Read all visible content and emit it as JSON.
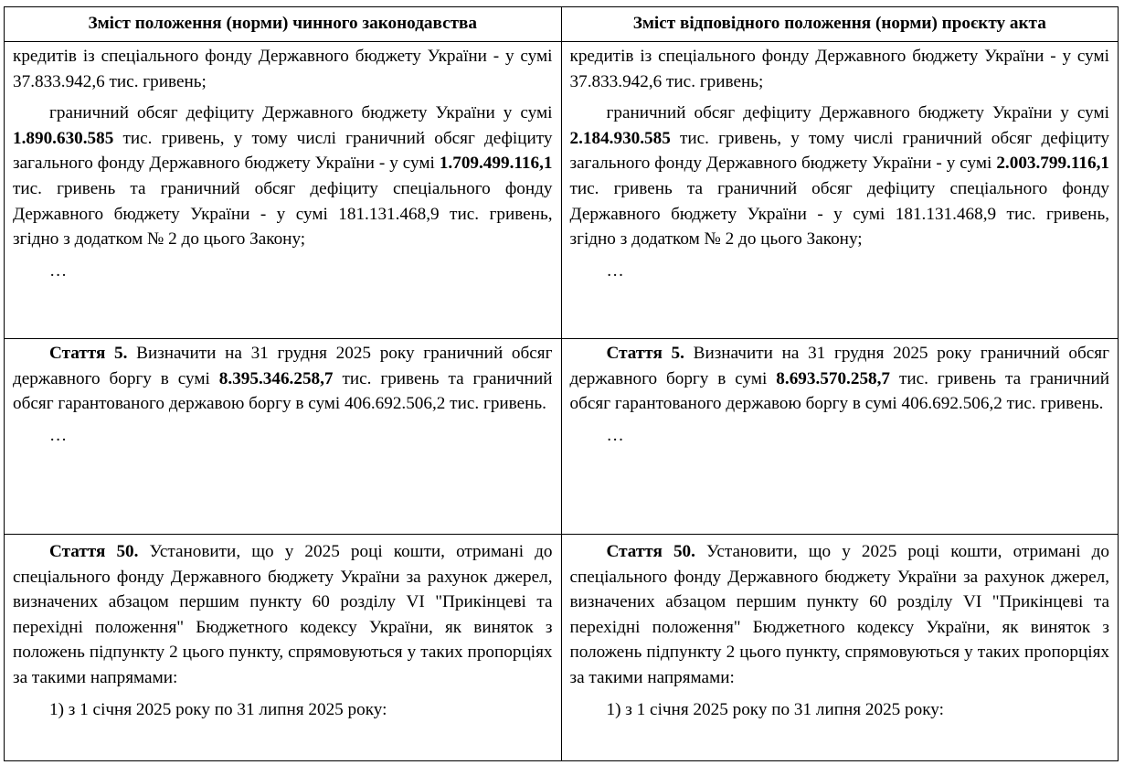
{
  "headers": [
    "Зміст положення (норми) чинного законодавства",
    "Зміст відповідного положення (норми) проєкту акта"
  ],
  "rows": [
    [
      [
        {
          "indent": false,
          "segments": [
            {
              "text": "кредитів із спеціального фонду Державного бюджету України - у сумі 37.833.942,6 тис. гривень;",
              "bold": false
            }
          ]
        },
        {
          "indent": true,
          "segments": [
            {
              "text": "граничний обсяг дефіциту Державного бюджету України у сумі ",
              "bold": false
            },
            {
              "text": "1.890.630.585",
              "bold": true
            },
            {
              "text": " тис. гривень, у тому числі граничний обсяг дефіциту загального фонду Державного бюджету України - у сумі ",
              "bold": false
            },
            {
              "text": "1.709.499.116,1",
              "bold": true
            },
            {
              "text": " тис. гривень та граничний обсяг дефіциту спеціального фонду Державного бюджету України - у сумі 181.131.468,9 тис. гривень, згідно з додатком № 2 до цього Закону;",
              "bold": false
            }
          ]
        },
        {
          "indent": true,
          "segments": [
            {
              "text": "…",
              "bold": false
            }
          ]
        }
      ],
      [
        {
          "indent": false,
          "segments": [
            {
              "text": "кредитів із спеціального фонду Державного бюджету України - у сумі 37.833.942,6 тис. гривень;",
              "bold": false
            }
          ]
        },
        {
          "indent": true,
          "segments": [
            {
              "text": "граничний обсяг дефіциту Державного бюджету України у сумі ",
              "bold": false
            },
            {
              "text": "2.184.930.585",
              "bold": true
            },
            {
              "text": " тис. гривень, у тому числі граничний обсяг дефіциту загального фонду Державного бюджету України - у сумі ",
              "bold": false
            },
            {
              "text": "2.003.799.116,1",
              "bold": true
            },
            {
              "text": " тис. гривень та граничний обсяг дефіциту спеціального фонду Державного бюджету України - у сумі 181.131.468,9 тис. гривень, згідно з додатком № 2 до цього Закону;",
              "bold": false
            }
          ]
        },
        {
          "indent": true,
          "segments": [
            {
              "text": "…",
              "bold": false
            }
          ]
        }
      ]
    ],
    [
      [
        {
          "indent": true,
          "segments": [
            {
              "text": "Стаття 5.",
              "bold": true
            },
            {
              "text": " Визначити на 31 грудня 2025 року граничний обсяг державного боргу в сумі ",
              "bold": false
            },
            {
              "text": "8.395.346.258,7",
              "bold": true
            },
            {
              "text": " тис. гривень та граничний обсяг гарантованого державою боргу в сумі 406.692.506,2 тис. гривень.",
              "bold": false
            }
          ]
        },
        {
          "indent": true,
          "segments": [
            {
              "text": "…",
              "bold": false
            }
          ]
        }
      ],
      [
        {
          "indent": true,
          "segments": [
            {
              "text": "Стаття 5.",
              "bold": true
            },
            {
              "text": " Визначити на 31 грудня 2025 року граничний обсяг державного боргу в сумі ",
              "bold": false
            },
            {
              "text": "8.693.570.258,7",
              "bold": true
            },
            {
              "text": " тис. гривень та граничний обсяг гарантованого державою боргу в сумі 406.692.506,2 тис. гривень.",
              "bold": false
            }
          ]
        },
        {
          "indent": true,
          "segments": [
            {
              "text": "…",
              "bold": false
            }
          ]
        }
      ]
    ],
    [
      [
        {
          "indent": true,
          "segments": [
            {
              "text": "Стаття 50.",
              "bold": true
            },
            {
              "text": " Установити, що у 2025 році кошти, отримані до спеціального фонду Державного бюджету України за рахунок джерел, визначених абзацом першим пункту 60 розділу VI \"Прикінцеві та перехідні положення\" Бюджетного кодексу України, як виняток з положень підпункту 2 цього пункту, спрямовуються у таких пропорціях за такими напрямами:",
              "bold": false
            }
          ]
        },
        {
          "indent": true,
          "segments": [
            {
              "text": "1) з 1 січня 2025 року по 31 липня 2025 року:",
              "bold": false
            }
          ]
        }
      ],
      [
        {
          "indent": true,
          "segments": [
            {
              "text": "Стаття 50.",
              "bold": true
            },
            {
              "text": " Установити, що у 2025 році кошти, отримані до спеціального фонду Державного бюджету України за рахунок джерел, визначених абзацом першим пункту 60 розділу VI \"Прикінцеві та перехідні положення\" Бюджетного кодексу України, як виняток з положень підпункту 2 цього пункту, спрямовуються у таких пропорціях за такими напрямами:",
              "bold": false
            }
          ]
        },
        {
          "indent": true,
          "segments": [
            {
              "text": "1) з 1 січня 2025 року по 31 липня 2025 року:",
              "bold": false
            }
          ]
        }
      ]
    ]
  ]
}
